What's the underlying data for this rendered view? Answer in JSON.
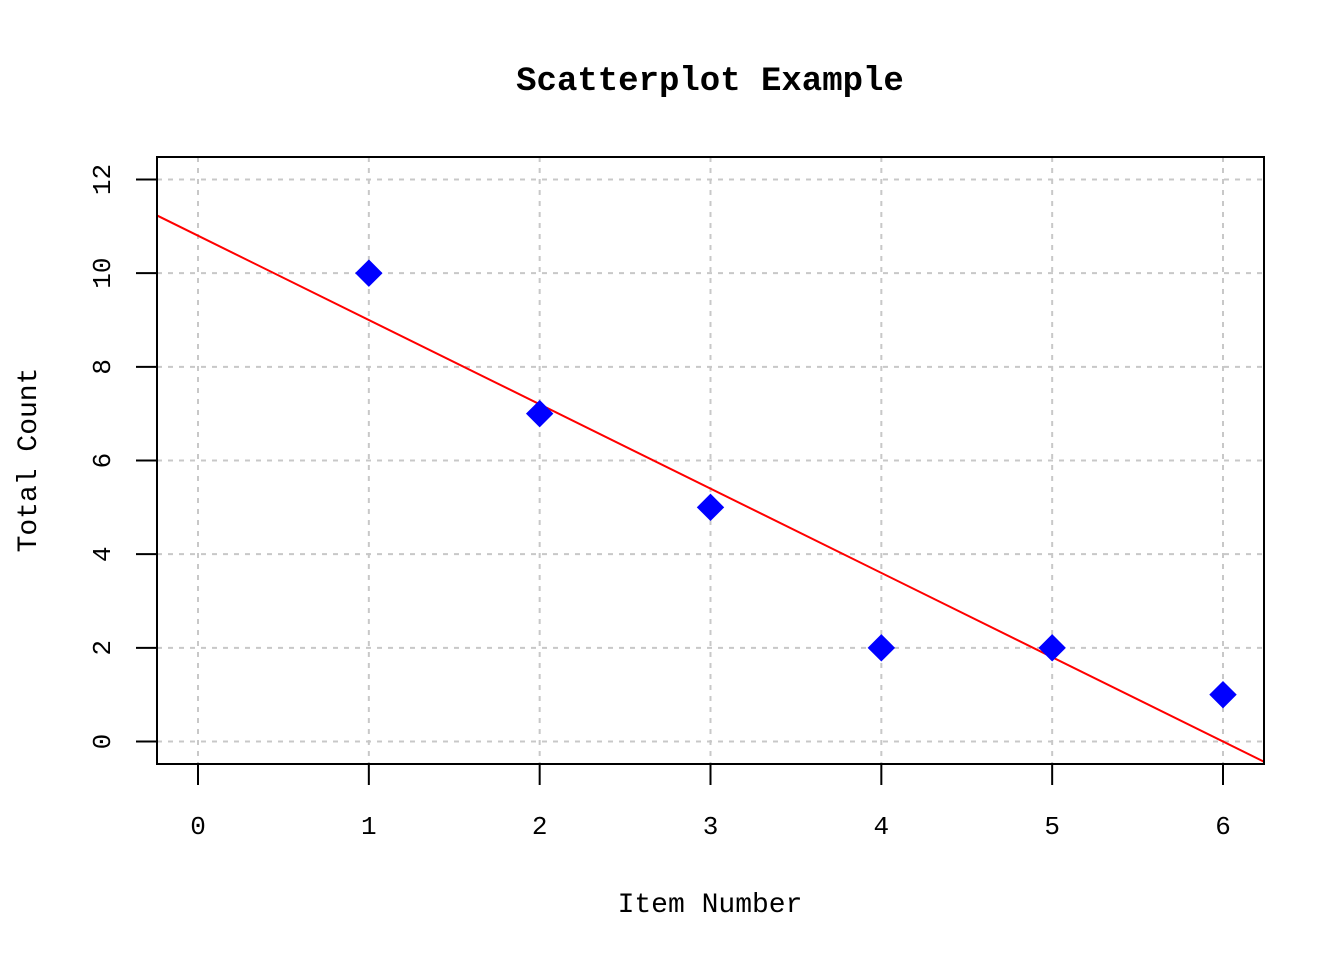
{
  "chart_data": {
    "type": "scatter",
    "title": "Scatterplot Example",
    "xlabel": "Item Number",
    "ylabel": "Total Count",
    "xlim": [
      -0.24,
      6.24
    ],
    "ylim": [
      -0.48,
      12.48
    ],
    "x_ticks": [
      "0",
      "1",
      "2",
      "3",
      "4",
      "5",
      "6"
    ],
    "y_ticks": [
      "0",
      "2",
      "4",
      "6",
      "8",
      "10",
      "12"
    ],
    "grid": true,
    "series": [
      {
        "x": [
          1,
          2,
          3,
          4,
          5,
          6
        ],
        "y": [
          10,
          7,
          5,
          2,
          2,
          1
        ],
        "marker": "diamond",
        "color": "#0000ff"
      }
    ],
    "regression_line": {
      "intercept": 10.8,
      "slope": -1.8,
      "color": "#ff0000"
    },
    "grid_color": "#c8c8c8"
  }
}
